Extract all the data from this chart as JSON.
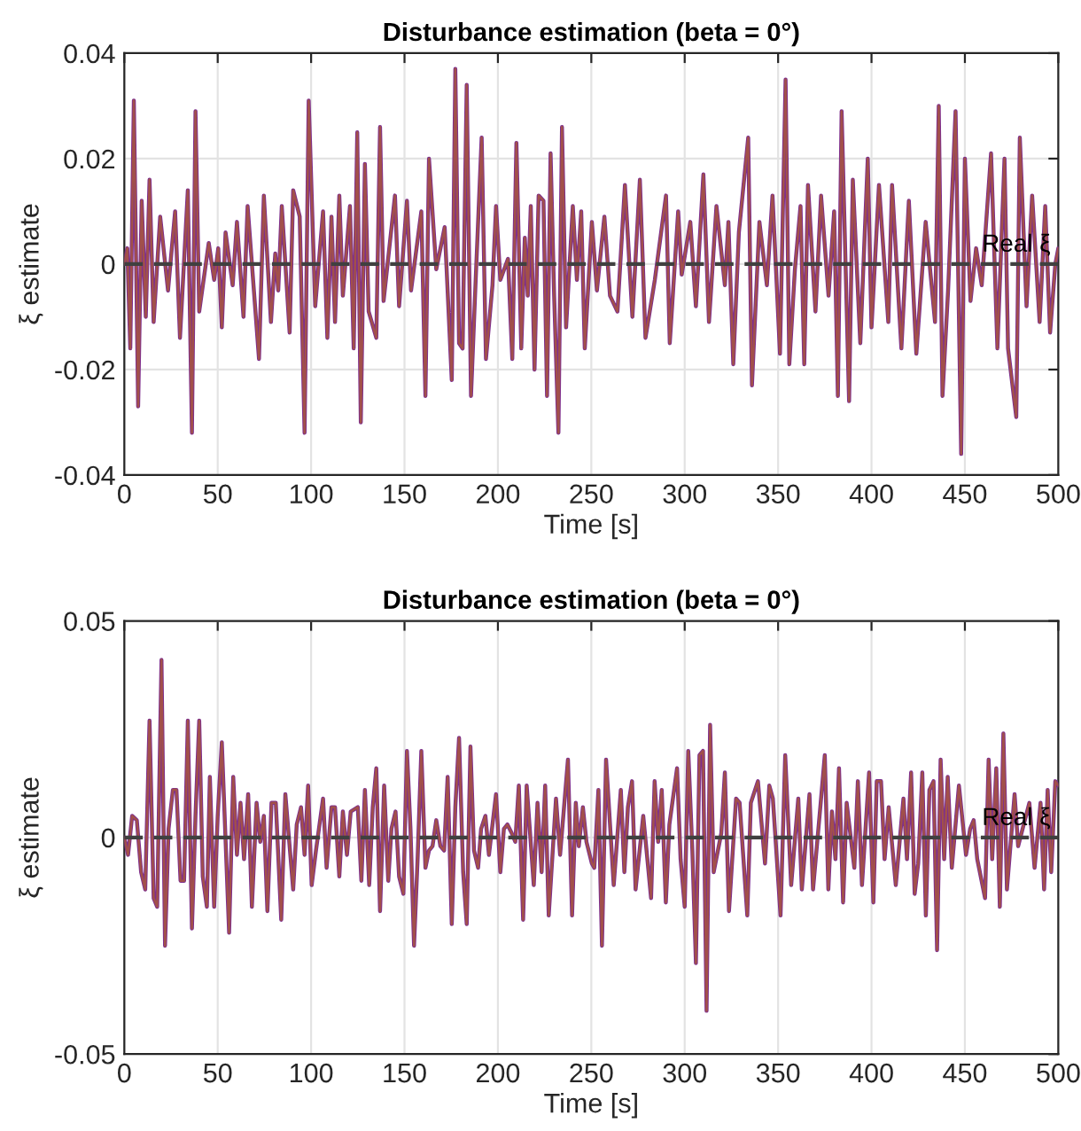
{
  "chart_data": [
    {
      "type": "line",
      "title": "Disturbance estimation (beta = 0°)",
      "xlabel": "Time [s]",
      "ylabel": "ξ estimate",
      "x": [
        0,
        1.6,
        3.2,
        5.1,
        7.4,
        9.3,
        11.5,
        13.5,
        15.7,
        19.2,
        23.4,
        27.2,
        29.8,
        34,
        36.2,
        38.1,
        40.1,
        45.2,
        48.1,
        50.3,
        52.2,
        54.2,
        58,
        60.3,
        63.8,
        66,
        72.1,
        74.7,
        78.5,
        80.8,
        82.4,
        84.3,
        88.5,
        90.4,
        93.9,
        96.5,
        98.7,
        102.2,
        106.4,
        108.7,
        110.9,
        112.8,
        115.1,
        117,
        120.8,
        122.8,
        124.7,
        126.6,
        128.8,
        130.8,
        134.9,
        136.9,
        138.8,
        144.9,
        147.1,
        151.3,
        153.5,
        159,
        161.2,
        163.1,
        167,
        171.5,
        175.3,
        177.2,
        179.2,
        181.1,
        183.3,
        185.6,
        188.1,
        191.3,
        193.6,
        197.1,
        199,
        201.3,
        205.4,
        207.7,
        209.9,
        212.5,
        214.4,
        216,
        217.6,
        219.6,
        221.8,
        224.4,
        226.3,
        228.2,
        230.1,
        232.4,
        234.3,
        236.5,
        240.1,
        242.3,
        244.6,
        246.5,
        250.3,
        253,
        257,
        260,
        264,
        268,
        272,
        276,
        279,
        284,
        290,
        292,
        296.5,
        298.4,
        303,
        306,
        310,
        313,
        317,
        321.5,
        323.4,
        326,
        329,
        334,
        336,
        340,
        344,
        347,
        351,
        354,
        356,
        359,
        362,
        364,
        366,
        370,
        373,
        377,
        380,
        382,
        384,
        388,
        390,
        394,
        398,
        400,
        404,
        409,
        411,
        416,
        420,
        424,
        429,
        434,
        436,
        438,
        441,
        445,
        448,
        450,
        453,
        456,
        459,
        464,
        467.4,
        471.2,
        473.1,
        477.5,
        479.4,
        483,
        486,
        490,
        493,
        495.6,
        498.4,
        500
      ],
      "series": [
        {
          "color": "#7e2f8e",
          "values": [
            0,
            0.003,
            -0.016,
            0.031,
            -0.027,
            0.012,
            -0.01,
            0.016,
            -0.011,
            0.009,
            -0.005,
            0.01,
            -0.014,
            0.014,
            -0.032,
            0.029,
            -0.009,
            0.004,
            -0.003,
            0.003,
            -0.012,
            0.006,
            -0.004,
            0.008,
            -0.01,
            0.011,
            -0.018,
            0.013,
            -0.011,
            0.002,
            -0.005,
            0.011,
            -0.013,
            0.014,
            0.009,
            -0.032,
            0.031,
            -0.008,
            0.01,
            -0.014,
            0.009,
            -0.011,
            0.013,
            -0.006,
            0.011,
            -0.016,
            0.025,
            -0.03,
            0.019,
            -0.009,
            -0.014,
            0.026,
            -0.007,
            0.013,
            -0.008,
            0.012,
            -0.005,
            0.01,
            -0.025,
            0.02,
            -0.001,
            0.007,
            -0.022,
            0.037,
            -0.015,
            -0.016,
            0.034,
            -0.025,
            -0.003,
            0.024,
            -0.018,
            -0.004,
            0.011,
            -0.003,
            0.001,
            -0.018,
            0.023,
            -0.016,
            0.005,
            -0.006,
            0.011,
            -0.02,
            0.013,
            0.012,
            -0.025,
            0.021,
            -0.006,
            -0.032,
            0.026,
            -0.012,
            0.011,
            -0.003,
            0.01,
            -0.016,
            0.008,
            -0.005,
            0.009,
            -0.006,
            -0.009,
            0.015,
            -0.01,
            0.016,
            -0.014,
            -0.003,
            0.013,
            -0.015,
            0.01,
            -0.002,
            0.008,
            -0.008,
            0.017,
            -0.011,
            0.011,
            -0.004,
            0.008,
            -0.019,
            0.006,
            0.024,
            -0.023,
            0.008,
            -0.004,
            0.013,
            -0.017,
            0.035,
            -0.019,
            -0.001,
            0.011,
            -0.019,
            0.015,
            -0.009,
            0.013,
            -0.006,
            0.01,
            -0.025,
            0.029,
            -0.026,
            0.016,
            -0.015,
            0.02,
            -0.012,
            0.015,
            -0.011,
            0.015,
            -0.016,
            0.012,
            -0.017,
            0.008,
            -0.011,
            0.03,
            -0.025,
            -0.005,
            0.029,
            -0.036,
            0.02,
            -0.007,
            0.003,
            -0.004,
            0.021,
            -0.016,
            0.02,
            -0.016,
            -0.029,
            0.024,
            -0.008,
            0.013,
            -0.011,
            0.011,
            -0.013,
            0.0,
            0.003
          ]
        },
        {
          "color": "#a2504a",
          "values": [
            0,
            0.003,
            -0.016,
            0.031,
            -0.027,
            0.012,
            -0.01,
            0.016,
            -0.011,
            0.009,
            -0.005,
            0.01,
            -0.014,
            0.014,
            -0.032,
            0.029,
            -0.009,
            0.004,
            -0.003,
            0.003,
            -0.012,
            0.006,
            -0.004,
            0.008,
            -0.01,
            0.011,
            -0.018,
            0.013,
            -0.011,
            0.002,
            -0.005,
            0.011,
            -0.013,
            0.014,
            0.009,
            -0.032,
            0.031,
            -0.008,
            0.01,
            -0.014,
            0.009,
            -0.011,
            0.013,
            -0.006,
            0.011,
            -0.016,
            0.025,
            -0.03,
            0.019,
            -0.009,
            -0.014,
            0.026,
            -0.007,
            0.013,
            -0.008,
            0.012,
            -0.005,
            0.01,
            -0.025,
            0.02,
            -0.001,
            0.007,
            -0.022,
            0.037,
            -0.015,
            -0.016,
            0.034,
            -0.025,
            -0.003,
            0.024,
            -0.018,
            -0.004,
            0.011,
            -0.003,
            0.001,
            -0.018,
            0.023,
            -0.016,
            0.005,
            -0.006,
            0.011,
            -0.02,
            0.013,
            0.012,
            -0.025,
            0.021,
            -0.006,
            -0.032,
            0.026,
            -0.012,
            0.011,
            -0.003,
            0.01,
            -0.016,
            0.008,
            -0.005,
            0.009,
            -0.006,
            -0.009,
            0.015,
            -0.01,
            0.016,
            -0.014,
            -0.003,
            0.013,
            -0.015,
            0.01,
            -0.002,
            0.008,
            -0.008,
            0.017,
            -0.011,
            0.011,
            -0.004,
            0.008,
            -0.019,
            0.006,
            0.024,
            -0.023,
            0.008,
            -0.004,
            0.013,
            -0.017,
            0.035,
            -0.019,
            -0.001,
            0.011,
            -0.019,
            0.015,
            -0.009,
            0.013,
            -0.006,
            0.01,
            -0.025,
            0.029,
            -0.026,
            0.016,
            -0.015,
            0.02,
            -0.012,
            0.015,
            -0.011,
            0.015,
            -0.016,
            0.012,
            -0.017,
            0.008,
            -0.011,
            0.03,
            -0.025,
            -0.005,
            0.029,
            -0.036,
            0.02,
            -0.007,
            0.003,
            -0.004,
            0.021,
            -0.016,
            0.02,
            -0.016,
            -0.029,
            0.024,
            -0.008,
            0.013,
            -0.011,
            0.011,
            -0.013,
            0.0,
            0.003
          ]
        }
      ],
      "ref_lines": [
        {
          "axis": "y",
          "value": 0,
          "label": "Real ξ",
          "color": "#404040",
          "line_style": "dashed"
        }
      ],
      "xlim": [
        0,
        500
      ],
      "xticks": [
        0,
        50,
        100,
        150,
        200,
        250,
        300,
        350,
        400,
        450,
        500
      ],
      "ylim": [
        -0.04,
        0.04
      ],
      "yticks": [
        -0.04,
        -0.02,
        0,
        0.02,
        0.04
      ],
      "grid": true
    },
    {
      "type": "line",
      "title": "Disturbance estimation (beta = 0°)",
      "xlabel": "Time [s]",
      "ylabel": "ξ estimate",
      "x": [
        0,
        2,
        4.2,
        6.7,
        9,
        11.2,
        13.5,
        15.7,
        17.6,
        19.9,
        21.8,
        23.7,
        26,
        27.9,
        30.1,
        32,
        34,
        36.2,
        38.1,
        40.1,
        42,
        44.2,
        45.8,
        48.1,
        50,
        52.2,
        56.1,
        58.3,
        60.3,
        62.2,
        64.1,
        66.3,
        68.3,
        70.8,
        72.8,
        74.7,
        76.6,
        78.8,
        81.1,
        84,
        86.2,
        90.4,
        92.3,
        94.6,
        96.5,
        98.4,
        100.3,
        102.6,
        106.4,
        108.3,
        110.9,
        112.8,
        115.1,
        117,
        119.2,
        121.2,
        125,
        126.9,
        128.8,
        131.1,
        133,
        134.9,
        136.9,
        139.1,
        141.3,
        143,
        145.2,
        147.1,
        149.4,
        151.3,
        153.2,
        155.1,
        157,
        159,
        161.2,
        163.1,
        165,
        167,
        169.2,
        171.2,
        173.1,
        175.3,
        177.2,
        179.2,
        181.4,
        183.3,
        185.3,
        187.2,
        189.4,
        191,
        193.3,
        195.2,
        199,
        201.3,
        203.2,
        205.1,
        207.4,
        209.3,
        211.2,
        213.5,
        215.4,
        219.2,
        221.2,
        223.4,
        225.3,
        227.2,
        231.1,
        233.3,
        237.5,
        239.7,
        241.7,
        243.3,
        245.5,
        247.4,
        250.3,
        251.6,
        253.8,
        255.7,
        257.9,
        262,
        265.8,
        267.7,
        269.6,
        271.8,
        273.7,
        277.8,
        282,
        283.9,
        285.8,
        287.7,
        289.9,
        291.8,
        295.9,
        297.8,
        300,
        301.9,
        304.1,
        306,
        307.9,
        309.8,
        311.7,
        313.6,
        315.5,
        319.6,
        321.5,
        323.7,
        327.5,
        329.4,
        333.5,
        335.4,
        339.2,
        343,
        345.3,
        347.2,
        351.3,
        353.8,
        357,
        360.8,
        362.7,
        366.8,
        368.7,
        372.8,
        375,
        376.9,
        378.8,
        380.7,
        382.6,
        384.8,
        386.7,
        390.8,
        392.7,
        394.9,
        398.7,
        401,
        402.8,
        405.1,
        407,
        409.2,
        413,
        417.1,
        419,
        421.2,
        423.1,
        425,
        427.2,
        429.1,
        431,
        433.2,
        435.1,
        437,
        438.9,
        440.8,
        443,
        446.8,
        450.6,
        452.8,
        454.7,
        456.6,
        460.8,
        462.7,
        464.6,
        466.8,
        468.7,
        470.6,
        472.5,
        476.6,
        478.5,
        484.5,
        487.3,
        490.5,
        492.4,
        494.3,
        496.2,
        498.4,
        500
      ],
      "series": [
        {
          "color": "#7e2f8e",
          "values": [
            0,
            -0.004,
            0.005,
            0.004,
            -0.008,
            -0.012,
            0.027,
            -0.014,
            -0.016,
            0.041,
            -0.025,
            0.002,
            0.011,
            0.011,
            -0.01,
            -0.01,
            0.027,
            -0.021,
            0.005,
            0.027,
            -0.009,
            -0.016,
            0.014,
            -0.016,
            0.005,
            0.022,
            -0.022,
            0.014,
            -0.004,
            0.008,
            -0.005,
            0.01,
            -0.016,
            0.008,
            -0.001,
            0.005,
            -0.017,
            0.008,
            0.008,
            -0.019,
            0.01,
            -0.012,
            0.003,
            0.007,
            -0.004,
            0.012,
            -0.011,
            -0.003,
            0.009,
            -0.007,
            0.007,
            0.007,
            -0.009,
            0.006,
            -0.004,
            0.006,
            0.007,
            -0.01,
            0.011,
            -0.011,
            0.007,
            0.016,
            -0.017,
            0.012,
            -0.01,
            0.002,
            0.006,
            -0.009,
            -0.013,
            0.02,
            0.002,
            -0.025,
            -0.005,
            0.02,
            -0.007,
            -0.003,
            -0.002,
            0.004,
            -0.002,
            -0.003,
            0.014,
            -0.02,
            0.007,
            0.023,
            -0.008,
            -0.02,
            0.021,
            -0.003,
            -0.007,
            0.002,
            0.005,
            -0.004,
            0.01,
            -0.008,
            0.002,
            0.003,
            0.001,
            -0.001,
            0.012,
            -0.019,
            0.012,
            -0.011,
            0.008,
            -0.008,
            0.012,
            -0.018,
            0.009,
            -0.004,
            0.018,
            -0.018,
            0.008,
            -0.002,
            0.007,
            -0.001,
            -0.006,
            -0.007,
            0.011,
            -0.025,
            0.018,
            -0.011,
            0.011,
            -0.008,
            0.007,
            0.013,
            -0.012,
            0.005,
            -0.014,
            0.013,
            -0.001,
            0.011,
            -0.015,
            0.003,
            0.016,
            -0.005,
            -0.016,
            0.02,
            -0.003,
            -0.029,
            0.019,
            0.02,
            -0.04,
            0.026,
            -0.008,
            0.001,
            0.015,
            -0.017,
            0.009,
            0.008,
            -0.018,
            0.008,
            0.013,
            -0.006,
            0.012,
            0.009,
            -0.018,
            0.019,
            -0.011,
            0.009,
            -0.012,
            0.01,
            -0.012,
            0.008,
            0.019,
            -0.012,
            0.006,
            -0.005,
            0.016,
            -0.015,
            0.008,
            -0.007,
            0.013,
            -0.011,
            0.015,
            -0.015,
            0.013,
            0.013,
            -0.005,
            0.007,
            -0.011,
            0.009,
            -0.005,
            0.015,
            -0.013,
            -0.006,
            0.015,
            -0.018,
            0.011,
            0.013,
            -0.026,
            0.018,
            -0.005,
            0.014,
            -0.007,
            0.012,
            -0.004,
            0.002,
            0.004,
            -0.005,
            -0.014,
            0.018,
            -0.005,
            0.016,
            -0.016,
            0.024,
            -0.012,
            0.01,
            -0.002,
            0.008,
            -0.007,
            0.008,
            -0.012,
            0.011,
            -0.008,
            0.013,
            0.012
          ]
        },
        {
          "color": "#a2504a",
          "values": [
            0,
            -0.004,
            0.005,
            0.004,
            -0.008,
            -0.012,
            0.027,
            -0.014,
            -0.016,
            0.041,
            -0.025,
            0.002,
            0.011,
            0.011,
            -0.01,
            -0.01,
            0.027,
            -0.021,
            0.005,
            0.027,
            -0.009,
            -0.016,
            0.014,
            -0.016,
            0.005,
            0.022,
            -0.022,
            0.014,
            -0.004,
            0.008,
            -0.005,
            0.01,
            -0.016,
            0.008,
            -0.001,
            0.005,
            -0.017,
            0.008,
            0.008,
            -0.019,
            0.01,
            -0.012,
            0.003,
            0.007,
            -0.004,
            0.012,
            -0.011,
            -0.003,
            0.009,
            -0.007,
            0.007,
            0.007,
            -0.009,
            0.006,
            -0.004,
            0.006,
            0.007,
            -0.01,
            0.011,
            -0.011,
            0.007,
            0.016,
            -0.017,
            0.012,
            -0.01,
            0.002,
            0.006,
            -0.009,
            -0.013,
            0.02,
            0.002,
            -0.025,
            -0.005,
            0.02,
            -0.007,
            -0.003,
            -0.002,
            0.004,
            -0.002,
            -0.003,
            0.014,
            -0.02,
            0.007,
            0.023,
            -0.008,
            -0.02,
            0.021,
            -0.003,
            -0.007,
            0.002,
            0.005,
            -0.004,
            0.01,
            -0.008,
            0.002,
            0.003,
            0.001,
            -0.001,
            0.012,
            -0.019,
            0.012,
            -0.011,
            0.008,
            -0.008,
            0.012,
            -0.018,
            0.009,
            -0.004,
            0.018,
            -0.018,
            0.008,
            -0.002,
            0.007,
            -0.001,
            -0.006,
            -0.007,
            0.011,
            -0.025,
            0.018,
            -0.011,
            0.011,
            -0.008,
            0.007,
            0.013,
            -0.012,
            0.005,
            -0.014,
            0.013,
            -0.001,
            0.011,
            -0.015,
            0.003,
            0.016,
            -0.005,
            -0.016,
            0.02,
            -0.003,
            -0.029,
            0.019,
            0.02,
            -0.04,
            0.026,
            -0.008,
            0.001,
            0.015,
            -0.017,
            0.009,
            0.008,
            -0.018,
            0.008,
            0.013,
            -0.006,
            0.012,
            0.009,
            -0.018,
            0.019,
            -0.011,
            0.009,
            -0.012,
            0.01,
            -0.012,
            0.008,
            0.019,
            -0.012,
            0.006,
            -0.005,
            0.016,
            -0.015,
            0.008,
            -0.007,
            0.013,
            -0.011,
            0.015,
            -0.015,
            0.013,
            0.013,
            -0.005,
            0.007,
            -0.011,
            0.009,
            -0.005,
            0.015,
            -0.013,
            -0.006,
            0.015,
            -0.018,
            0.011,
            0.013,
            -0.026,
            0.018,
            -0.005,
            0.014,
            -0.007,
            0.012,
            -0.004,
            0.002,
            0.004,
            -0.005,
            -0.014,
            0.018,
            -0.005,
            0.016,
            -0.016,
            0.024,
            -0.012,
            0.01,
            -0.002,
            0.008,
            -0.007,
            0.008,
            -0.012,
            0.011,
            -0.008,
            0.013,
            0.012
          ]
        }
      ],
      "ref_lines": [
        {
          "axis": "y",
          "value": 0,
          "label": "Real ξ",
          "color": "#404040",
          "line_style": "dashed"
        }
      ],
      "xlim": [
        0,
        500
      ],
      "xticks": [
        0,
        50,
        100,
        150,
        200,
        250,
        300,
        350,
        400,
        450,
        500
      ],
      "ylim": [
        -0.05,
        0.05
      ],
      "yticks": [
        -0.05,
        0,
        0.05
      ],
      "grid": true
    }
  ]
}
